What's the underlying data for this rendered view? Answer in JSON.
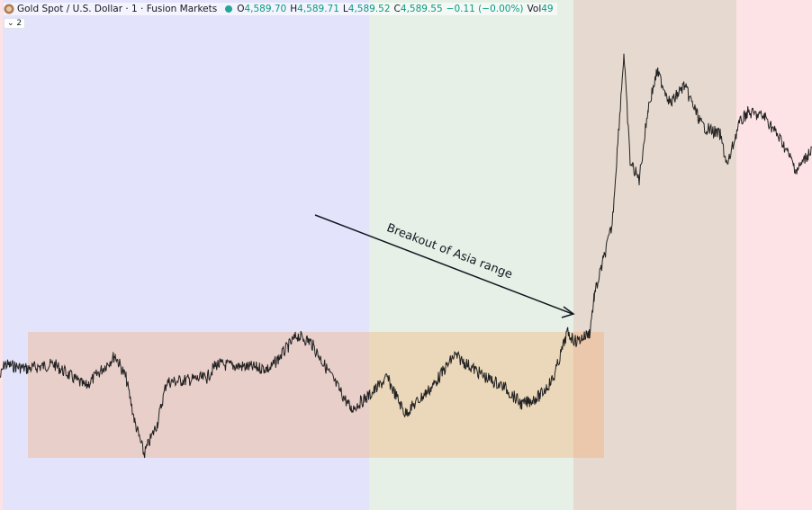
{
  "header": {
    "symbol": "Gold Spot / U.S. Dollar · 1 · Fusion Markets",
    "ohlc": [
      {
        "label": "O",
        "value": "4,589.70"
      },
      {
        "label": "H",
        "value": "4,589.71"
      },
      {
        "label": "L",
        "value": "4,589.52"
      },
      {
        "label": "C",
        "value": "4,589.55"
      }
    ],
    "change": "−0.11 (−0.00%)",
    "volume_label": "Vol",
    "volume": "49"
  },
  "indicators_toggle": "2",
  "annotation": "Breakout of Asia range"
}
